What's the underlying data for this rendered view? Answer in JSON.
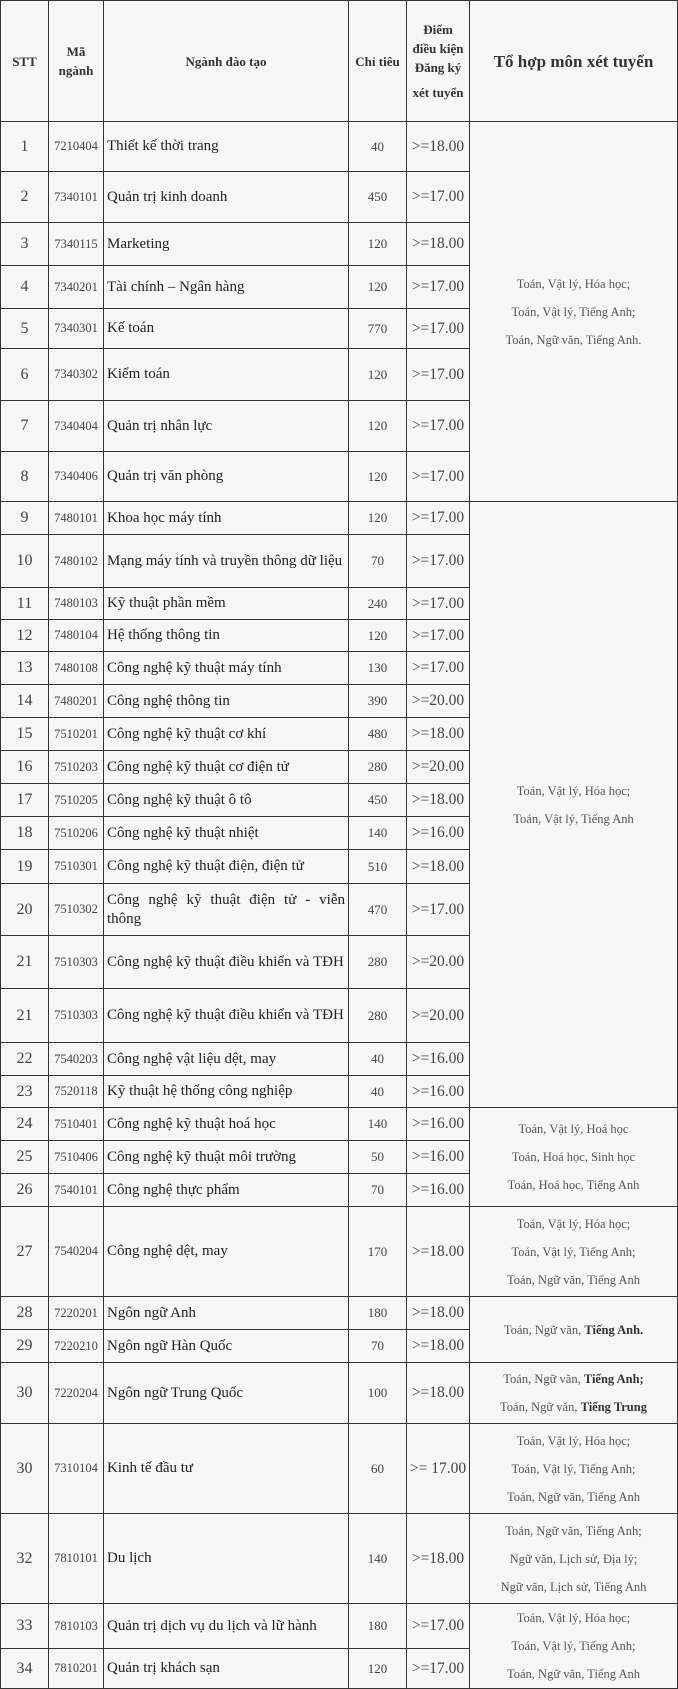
{
  "headers": {
    "stt": "STT",
    "code": "Mã ngành",
    "name": "Ngành đào tạo",
    "quota": "Chỉ tiêu",
    "score_line1": "Điểm điều kiện Đăng ký",
    "score_line2": "xét tuyển",
    "combo": "Tổ hợp môn xét tuyển"
  },
  "rows": [
    {
      "stt": "1",
      "code": "7210404",
      "name": "Thiết kế thời trang",
      "quota": "40",
      "score": ">=18.00"
    },
    {
      "stt": "2",
      "code": "7340101",
      "name": "Quản trị kinh doanh",
      "quota": "450",
      "score": ">=17.00"
    },
    {
      "stt": "3",
      "code": "7340115",
      "name": "Marketing",
      "quota": "120",
      "score": ">=18.00"
    },
    {
      "stt": "4",
      "code": "7340201",
      "name": "Tài chính – Ngân hàng",
      "quota": "120",
      "score": ">=17.00"
    },
    {
      "stt": "5",
      "code": "7340301",
      "name": "Kế toán",
      "quota": "770",
      "score": ">=17.00"
    },
    {
      "stt": "6",
      "code": "7340302",
      "name": "Kiểm toán",
      "quota": "120",
      "score": ">=17.00"
    },
    {
      "stt": "7",
      "code": "7340404",
      "name": "Quản trị nhân lực",
      "quota": "120",
      "score": ">=17.00"
    },
    {
      "stt": "8",
      "code": "7340406",
      "name": "Quản trị văn phòng",
      "quota": "120",
      "score": ">=17.00"
    },
    {
      "stt": "9",
      "code": "7480101",
      "name": "Khoa học máy tính",
      "quota": "120",
      "score": ">=17.00"
    },
    {
      "stt": "10",
      "code": "7480102",
      "name": "Mạng máy tính và truyền thông dữ liệu",
      "quota": "70",
      "score": ">=17.00"
    },
    {
      "stt": "11",
      "code": "7480103",
      "name": "Kỹ thuật phần mềm",
      "quota": "240",
      "score": ">=17.00"
    },
    {
      "stt": "12",
      "code": "7480104",
      "name": "Hệ thống thông tin",
      "quota": "120",
      "score": ">=17.00"
    },
    {
      "stt": "13",
      "code": "7480108",
      "name": "Công nghệ kỹ thuật máy tính",
      "quota": "130",
      "score": ">=17.00"
    },
    {
      "stt": "14",
      "code": "7480201",
      "name": "Công nghệ thông tin",
      "quota": "390",
      "score": ">=20.00"
    },
    {
      "stt": "15",
      "code": "7510201",
      "name": "Công nghệ kỹ thuật cơ khí",
      "quota": "480",
      "score": ">=18.00"
    },
    {
      "stt": "16",
      "code": "7510203",
      "name": "Công nghệ kỹ thuật cơ điện tử",
      "quota": "280",
      "score": ">=20.00"
    },
    {
      "stt": "17",
      "code": "7510205",
      "name": "Công nghệ kỹ thuật ô tô",
      "quota": "450",
      "score": ">=18.00"
    },
    {
      "stt": "18",
      "code": "7510206",
      "name": "Công nghệ kỹ thuật nhiệt",
      "quota": "140",
      "score": ">=16.00"
    },
    {
      "stt": "19",
      "code": "7510301",
      "name": "Công nghệ kỹ thuật điện, điện tử",
      "quota": "510",
      "score": ">=18.00"
    },
    {
      "stt": "20",
      "code": "7510302",
      "name": "Công nghệ kỹ thuật điện tử - viễn thông",
      "quota": "470",
      "score": ">=17.00"
    },
    {
      "stt": "21",
      "code": "7510303",
      "name": "Công nghệ kỹ thuật điều khiển và TĐH",
      "quota": "280",
      "score": ">=20.00"
    },
    {
      "stt": "21",
      "code": "7510303",
      "name": "Công nghệ kỹ thuật điều khiển và TĐH",
      "quota": "280",
      "score": ">=20.00"
    },
    {
      "stt": "22",
      "code": "7540203",
      "name": "Công nghệ vật liệu dệt, may",
      "quota": "40",
      "score": ">=16.00"
    },
    {
      "stt": "23",
      "code": "7520118",
      "name": "Kỹ thuật hệ thống công nghiệp",
      "quota": "40",
      "score": ">=16.00"
    },
    {
      "stt": "24",
      "code": "7510401",
      "name": "Công nghệ kỹ thuật hoá học",
      "quota": "140",
      "score": ">=16.00"
    },
    {
      "stt": "25",
      "code": "7510406",
      "name": "Công nghệ kỹ thuật môi trường",
      "quota": "50",
      "score": ">=16.00"
    },
    {
      "stt": "26",
      "code": "7540101",
      "name": "Công nghệ thực phẩm",
      "quota": "70",
      "score": ">=16.00"
    },
    {
      "stt": "27",
      "code": "7540204",
      "name": "Công nghệ dệt, may",
      "quota": "170",
      "score": ">=18.00"
    },
    {
      "stt": "28",
      "code": "7220201",
      "name": "Ngôn ngữ Anh",
      "quota": "180",
      "score": ">=18.00"
    },
    {
      "stt": "29",
      "code": "7220210",
      "name": "Ngôn ngữ Hàn Quốc",
      "quota": "70",
      "score": ">=18.00"
    },
    {
      "stt": "30",
      "code": "7220204",
      "name": "Ngôn ngữ Trung Quốc",
      "quota": "100",
      "score": ">=18.00"
    },
    {
      "stt": "30",
      "code": "7310104",
      "name": "Kinh tế đầu tư",
      "quota": "60",
      "score": ">= 17.00"
    },
    {
      "stt": "32",
      "code": "7810101",
      "name": "Du lịch",
      "quota": "140",
      "score": ">=18.00"
    },
    {
      "stt": "33",
      "code": "7810103",
      "name": "Quản trị dịch vụ du lịch và lữ hành",
      "quota": "180",
      "score": ">=17.00"
    },
    {
      "stt": "34",
      "code": "7810201",
      "name": "Quản trị khách sạn",
      "quota": "120",
      "score": ">=17.00"
    }
  ],
  "combo_groups": [
    {
      "start": 0,
      "span": 8,
      "lines": [
        {
          "plain": "Toán, Vật lý, Hóa học;",
          "bold": ""
        },
        {
          "plain": "Toán, Vật lý, Tiếng Anh;",
          "bold": ""
        },
        {
          "plain": "Toán, Ngữ văn, Tiếng Anh.",
          "bold": ""
        }
      ]
    },
    {
      "start": 8,
      "span": 16,
      "lines": [
        {
          "plain": "Toán, Vật lý, Hóa học;",
          "bold": ""
        },
        {
          "plain": "Toán, Vật lý, Tiếng Anh",
          "bold": ""
        }
      ]
    },
    {
      "start": 24,
      "span": 3,
      "lines": [
        {
          "plain": "Toán, Vật lý, Hoá học",
          "bold": ""
        },
        {
          "plain": "Toán, Hoá học, Sinh học",
          "bold": ""
        },
        {
          "plain": "Toán, Hoá học, Tiếng Anh",
          "bold": ""
        }
      ]
    },
    {
      "start": 27,
      "span": 1,
      "lines": [
        {
          "plain": "Toán, Vật lý, Hóa học;",
          "bold": ""
        },
        {
          "plain": "Toán, Vật lý, Tiếng Anh;",
          "bold": ""
        },
        {
          "plain": "Toán, Ngữ văn, Tiếng Anh",
          "bold": ""
        }
      ]
    },
    {
      "start": 28,
      "span": 2,
      "lines": [
        {
          "plain": "Toán, Ngữ văn, ",
          "bold": "Tiếng Anh."
        }
      ]
    },
    {
      "start": 30,
      "span": 1,
      "lines": [
        {
          "plain": "Toán, Ngữ văn, ",
          "bold": "Tiếng Anh;"
        },
        {
          "plain": "Toán, Ngữ văn, ",
          "bold": "Tiếng Trung"
        }
      ]
    },
    {
      "start": 31,
      "span": 1,
      "lines": [
        {
          "plain": "Toán, Vật lý, Hóa học;",
          "bold": ""
        },
        {
          "plain": "Toán, Vật lý, Tiếng Anh;",
          "bold": ""
        },
        {
          "plain": "Toán, Ngữ văn, Tiếng Anh",
          "bold": ""
        }
      ]
    },
    {
      "start": 32,
      "span": 1,
      "lines": [
        {
          "plain": "Toán, Ngữ văn, Tiếng Anh;",
          "bold": ""
        },
        {
          "plain": "Ngữ văn, Lịch sử, Địa lý;",
          "bold": ""
        },
        {
          "plain": "Ngữ văn, Lịch sử, Tiếng Anh",
          "bold": ""
        }
      ]
    },
    {
      "start": 33,
      "span": 2,
      "lines": [
        {
          "plain": "Toán, Vật lý, Hóa học;",
          "bold": ""
        },
        {
          "plain": "Toán, Vật lý, Tiếng Anh;",
          "bold": ""
        },
        {
          "plain": "Toán, Ngữ văn, Tiếng Anh",
          "bold": ""
        }
      ]
    }
  ]
}
